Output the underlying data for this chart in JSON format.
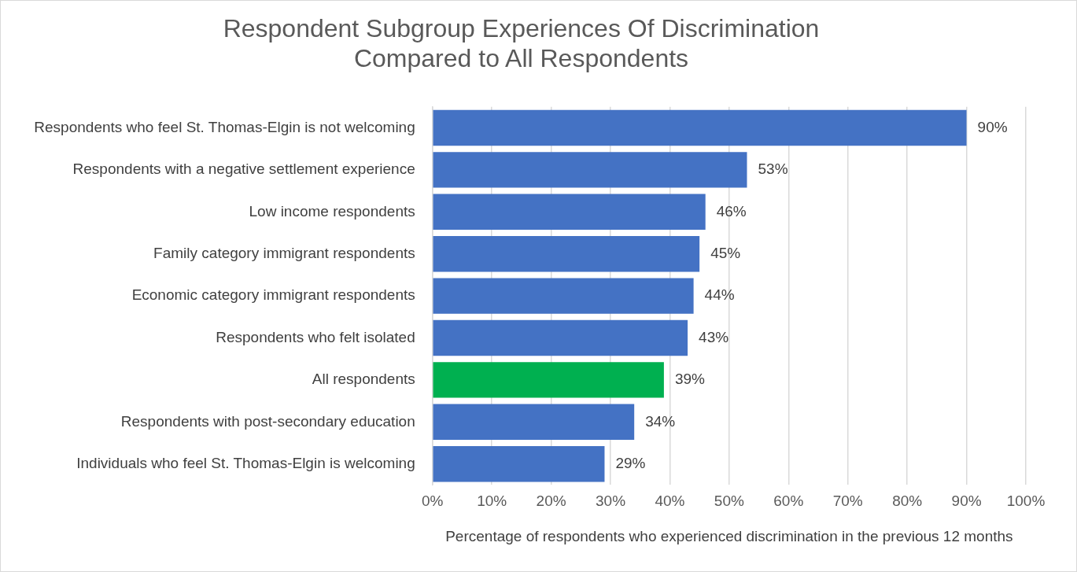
{
  "chart_data": {
    "type": "bar",
    "orientation": "horizontal",
    "title": "Respondent Subgroup Experiences Of Discrimination\nCompared to All Respondents",
    "xlabel": "Percentage of respondents who experienced discrimination in the previous 12 months",
    "categories": [
      "Respondents who feel St. Thomas-Elgin is not welcoming",
      "Respondents with a negative settlement experience",
      "Low income respondents",
      "Family category immigrant respondents",
      "Economic category immigrant respondents",
      "Respondents who felt isolated",
      "All respondents",
      "Respondents with post-secondary education",
      "Individuals who feel St. Thomas-Elgin is welcoming"
    ],
    "values": [
      90,
      53,
      46,
      45,
      44,
      43,
      39,
      34,
      29
    ],
    "colors": [
      "#4472c4",
      "#4472c4",
      "#4472c4",
      "#4472c4",
      "#4472c4",
      "#4472c4",
      "#00b050",
      "#4472c4",
      "#4472c4"
    ],
    "value_labels": [
      "90%",
      "53%",
      "46%",
      "45%",
      "44%",
      "43%",
      "39%",
      "34%",
      "29%"
    ],
    "xlim": [
      0,
      100
    ],
    "xticks": [
      {
        "value": 0,
        "label": "0%"
      },
      {
        "value": 10,
        "label": "10%"
      },
      {
        "value": 20,
        "label": "20%"
      },
      {
        "value": 30,
        "label": "30%"
      },
      {
        "value": 40,
        "label": "40%"
      },
      {
        "value": 50,
        "label": "50%"
      },
      {
        "value": 60,
        "label": "60%"
      },
      {
        "value": 70,
        "label": "70%"
      },
      {
        "value": 80,
        "label": "80%"
      },
      {
        "value": 90,
        "label": "90%"
      },
      {
        "value": 100,
        "label": "100%"
      }
    ],
    "grid": "x",
    "legend": false
  }
}
